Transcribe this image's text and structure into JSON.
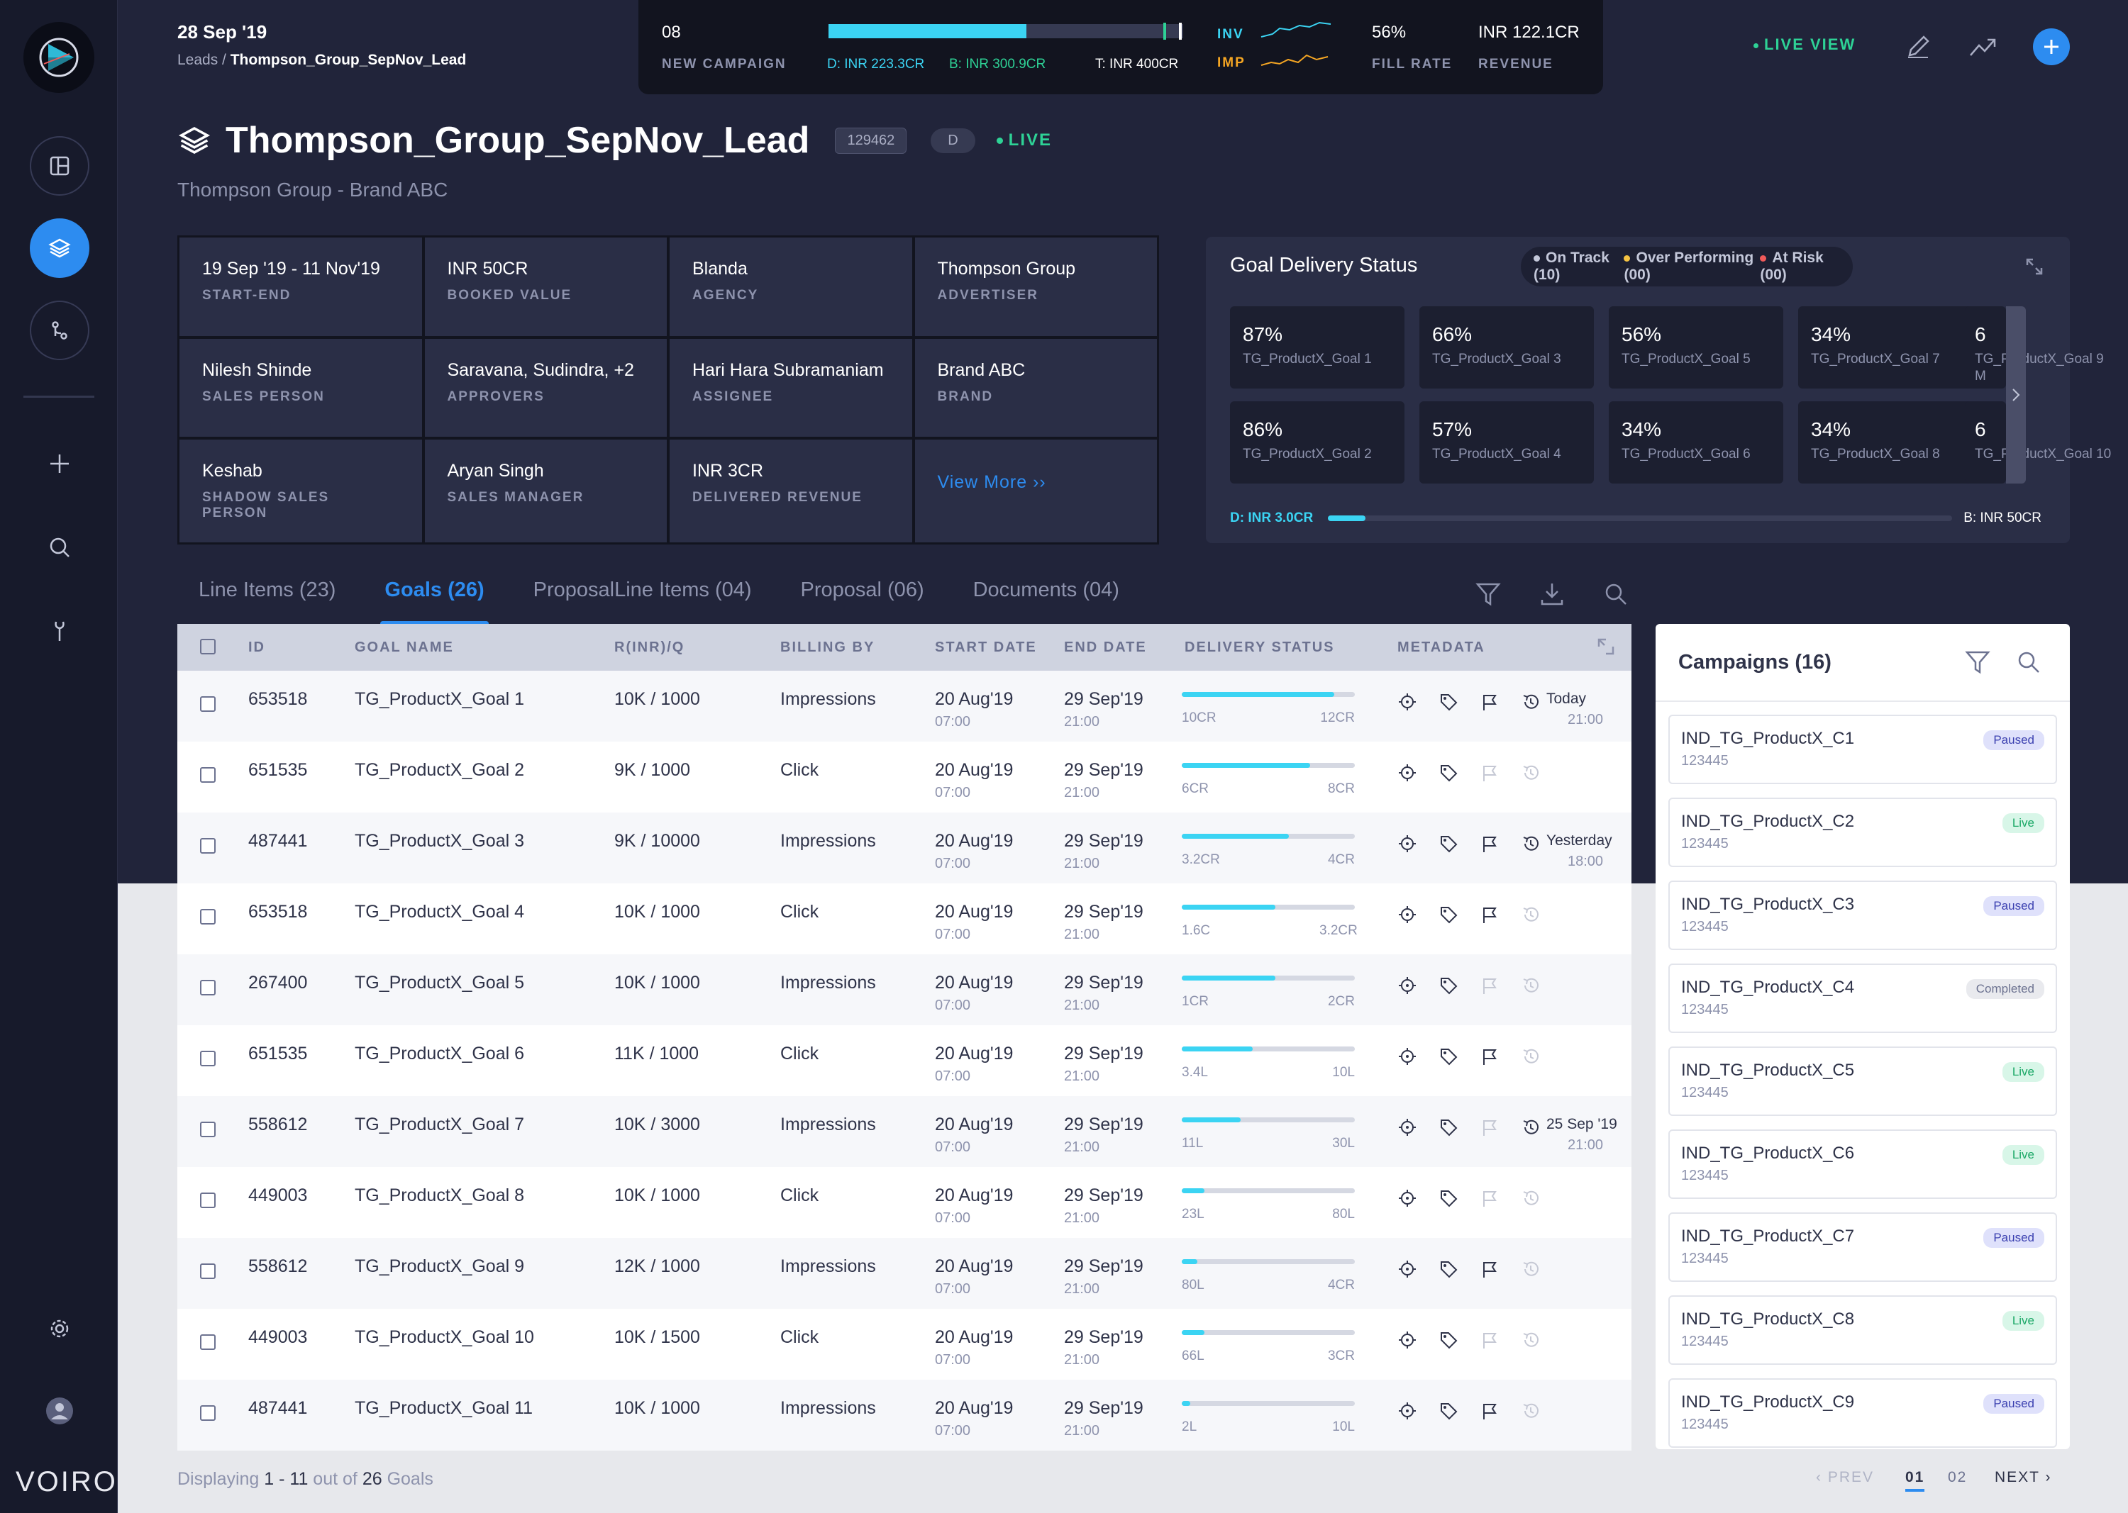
{
  "brand": "VOIRO",
  "top": {
    "date": "28 Sep '19",
    "crumb_parent": "Leads",
    "crumb_sep": " / ",
    "crumb_current": "Thompson_Group_SepNov_Lead"
  },
  "metrics": {
    "new_campaign_value": "08",
    "new_campaign_label": "NEW CAMPAIGN",
    "delivery_d": "D: INR 223.3CR",
    "delivery_b": "B: INR 300.9CR",
    "delivery_t": "T: INR 400CR",
    "delivery_fill": 0.558,
    "inv_label": "INV",
    "imp_label": "IMP",
    "fill_rate_value": "56%",
    "fill_rate_label": "FILL RATE",
    "revenue_value": "INR 122.1CR",
    "revenue_label": "REVENUE",
    "colors": {
      "inv": "#3bd4f3",
      "imp": "#f5a623",
      "accent": "#2d8cf0",
      "live": "#2ed296"
    }
  },
  "topright": {
    "live_view": "LIVE VIEW"
  },
  "lead": {
    "title": "Thompson_Group_SepNov_Lead",
    "id": "129462",
    "tag": "D",
    "status": "LIVE",
    "subtitle": "Thompson Group - Brand ABC"
  },
  "info": [
    {
      "value": "19 Sep '19 - 11 Nov'19",
      "label": "START-END"
    },
    {
      "value": "INR 50CR",
      "label": "BOOKED VALUE"
    },
    {
      "value": "Blanda",
      "label": "AGENCY"
    },
    {
      "value": "Thompson Group",
      "label": "ADVERTISER"
    },
    {
      "value": "Nilesh Shinde",
      "label": "SALES PERSON"
    },
    {
      "value": "Saravana, Sudindra, +2",
      "label": "APPROVERS"
    },
    {
      "value": "Hari Hara Subramaniam",
      "label": "ASSIGNEE"
    },
    {
      "value": "Brand ABC",
      "label": "BRAND"
    },
    {
      "value": "Keshab",
      "label": "SHADOW SALES PERSON"
    },
    {
      "value": "Aryan Singh",
      "label": "SALES MANAGER"
    },
    {
      "value": "INR 3CR",
      "label": "DELIVERED REVENUE"
    }
  ],
  "view_more": "View More ››",
  "goal_status": {
    "title": "Goal Delivery Status",
    "legend": [
      {
        "label": "On Track (10)",
        "color": "#c3c7d9"
      },
      {
        "label": "Over Performing (00)",
        "color": "#f5c342"
      },
      {
        "label": "At Risk (00)",
        "color": "#f05a5a"
      }
    ],
    "tiles": [
      {
        "pct": "87%",
        "name": "TG_ProductX_Goal 1"
      },
      {
        "pct": "66%",
        "name": "TG_ProductX_Goal 3"
      },
      {
        "pct": "56%",
        "name": "TG_ProductX_Goal 5"
      },
      {
        "pct": "34%",
        "name": "TG_ProductX_Goal 7"
      },
      {
        "pct": "86%",
        "name": "TG_ProductX_Goal 2"
      },
      {
        "pct": "57%",
        "name": "TG_ProductX_Goal 4"
      },
      {
        "pct": "34%",
        "name": "TG_ProductX_Goal 6"
      },
      {
        "pct": "34%",
        "name": "TG_ProductX_Goal 8"
      }
    ],
    "peek_top": {
      "pct": "6",
      "name": "TG_ProductX_Goal 9",
      "name2": "M"
    },
    "peek_bottom": {
      "pct": "6",
      "name": "TG_ProductX_Goal 10"
    },
    "foot_left": "D: INR 3.0CR",
    "foot_right": "B: INR 50CR",
    "foot_fill": 0.06
  },
  "tabs": [
    {
      "label": "Line Items (23)"
    },
    {
      "label": "Goals (26)"
    },
    {
      "label": "ProposalLine Items (04)"
    },
    {
      "label": "Proposal (06)"
    },
    {
      "label": "Documents (04)"
    }
  ],
  "table": {
    "headers": [
      "ID",
      "GOAL NAME",
      "R(INR)/Q",
      "BILLING BY",
      "START DATE",
      "END DATE",
      "DELIVERY STATUS",
      "METADATA"
    ],
    "rows": [
      {
        "id": "653518",
        "name": "TG_ProductX_Goal 1",
        "rate": "10K / 1000",
        "billing": "Impressions",
        "sd": "20 Aug'19",
        "st": "07:00",
        "ed": "29 Sep'19",
        "et": "21:00",
        "dmin": "10CR",
        "dmax": "12CR",
        "fill": 0.88,
        "flag": true,
        "last": "Today",
        "lastt": "21:00"
      },
      {
        "id": "651535",
        "name": "TG_ProductX_Goal 2",
        "rate": "9K / 1000",
        "billing": "Click",
        "sd": "20 Aug'19",
        "st": "07:00",
        "ed": "29 Sep'19",
        "et": "21:00",
        "dmin": "6CR",
        "dmax": "8CR",
        "fill": 0.74,
        "flag": false,
        "last": "",
        "lastt": ""
      },
      {
        "id": "487441",
        "name": "TG_ProductX_Goal 3",
        "rate": "9K / 10000",
        "billing": "Impressions",
        "sd": "20 Aug'19",
        "st": "07:00",
        "ed": "29 Sep'19",
        "et": "21:00",
        "dmin": "3.2CR",
        "dmax": "4CR",
        "fill": 0.62,
        "flag": true,
        "last": "Yesterday",
        "lastt": "18:00"
      },
      {
        "id": "653518",
        "name": "TG_ProductX_Goal 4",
        "rate": "10K / 1000",
        "billing": "Click",
        "sd": "20 Aug'19",
        "st": "07:00",
        "ed": "29 Sep'19",
        "et": "21:00",
        "dmin": "1.6C",
        "dmax": "3.2CR",
        "fill": 0.54,
        "flag": true,
        "last": "",
        "lastt": ""
      },
      {
        "id": "267400",
        "name": "TG_ProductX_Goal 5",
        "rate": "10K / 1000",
        "billing": "Impressions",
        "sd": "20 Aug'19",
        "st": "07:00",
        "ed": "29 Sep'19",
        "et": "21:00",
        "dmin": "1CR",
        "dmax": "2CR",
        "fill": 0.54,
        "flag": false,
        "last": "",
        "lastt": ""
      },
      {
        "id": "651535",
        "name": "TG_ProductX_Goal 6",
        "rate": "11K / 1000",
        "billing": "Click",
        "sd": "20 Aug'19",
        "st": "07:00",
        "ed": "29 Sep'19",
        "et": "21:00",
        "dmin": "3.4L",
        "dmax": "10L",
        "fill": 0.41,
        "flag": true,
        "last": "",
        "lastt": ""
      },
      {
        "id": "558612",
        "name": "TG_ProductX_Goal 7",
        "rate": "10K / 3000",
        "billing": "Impressions",
        "sd": "20 Aug'19",
        "st": "07:00",
        "ed": "29 Sep'19",
        "et": "21:00",
        "dmin": "11L",
        "dmax": "30L",
        "fill": 0.34,
        "flag": false,
        "last": "25 Sep '19",
        "lastt": "21:00"
      },
      {
        "id": "449003",
        "name": "TG_ProductX_Goal 8",
        "rate": "10K / 1000",
        "billing": "Click",
        "sd": "20 Aug'19",
        "st": "07:00",
        "ed": "29 Sep'19",
        "et": "21:00",
        "dmin": "23L",
        "dmax": "80L",
        "fill": 0.13,
        "flag": false,
        "last": "",
        "lastt": ""
      },
      {
        "id": "558612",
        "name": "TG_ProductX_Goal 9",
        "rate": "12K / 1000",
        "billing": "Impressions",
        "sd": "20 Aug'19",
        "st": "07:00",
        "ed": "29 Sep'19",
        "et": "21:00",
        "dmin": "80L",
        "dmax": "4CR",
        "fill": 0.09,
        "flag": true,
        "last": "",
        "lastt": ""
      },
      {
        "id": "449003",
        "name": "TG_ProductX_Goal 10",
        "rate": "10K / 1500",
        "billing": "Click",
        "sd": "20 Aug'19",
        "st": "07:00",
        "ed": "29 Sep'19",
        "et": "21:00",
        "dmin": "66L",
        "dmax": "3CR",
        "fill": 0.13,
        "flag": false,
        "last": "",
        "lastt": ""
      },
      {
        "id": "487441",
        "name": "TG_ProductX_Goal 11",
        "rate": "10K / 1000",
        "billing": "Impressions",
        "sd": "20 Aug'19",
        "st": "07:00",
        "ed": "29 Sep'19",
        "et": "21:00",
        "dmin": "2L",
        "dmax": "10L",
        "fill": 0.05,
        "flag": true,
        "last": "",
        "lastt": ""
      }
    ]
  },
  "campaigns": {
    "title": "Campaigns (16)",
    "items": [
      {
        "name": "IND_TG_ProductX_C1",
        "id": "123445",
        "status": "Paused"
      },
      {
        "name": "IND_TG_ProductX_C2",
        "id": "123445",
        "status": "Live"
      },
      {
        "name": "IND_TG_ProductX_C3",
        "id": "123445",
        "status": "Paused"
      },
      {
        "name": "IND_TG_ProductX_C4",
        "id": "123445",
        "status": "Completed"
      },
      {
        "name": "IND_TG_ProductX_C5",
        "id": "123445",
        "status": "Live"
      },
      {
        "name": "IND_TG_ProductX_C6",
        "id": "123445",
        "status": "Live"
      },
      {
        "name": "IND_TG_ProductX_C7",
        "id": "123445",
        "status": "Paused"
      },
      {
        "name": "IND_TG_ProductX_C8",
        "id": "123445",
        "status": "Live"
      },
      {
        "name": "IND_TG_ProductX_C9",
        "id": "123445",
        "status": "Paused"
      }
    ]
  },
  "footer": {
    "prefix": "Displaying ",
    "range": "1 - 11",
    "mid": " out of ",
    "total": "26",
    "suffix": " Goals"
  },
  "pager": {
    "prev": "PREV",
    "page1": "01",
    "page2": "02",
    "next": "NEXT"
  }
}
